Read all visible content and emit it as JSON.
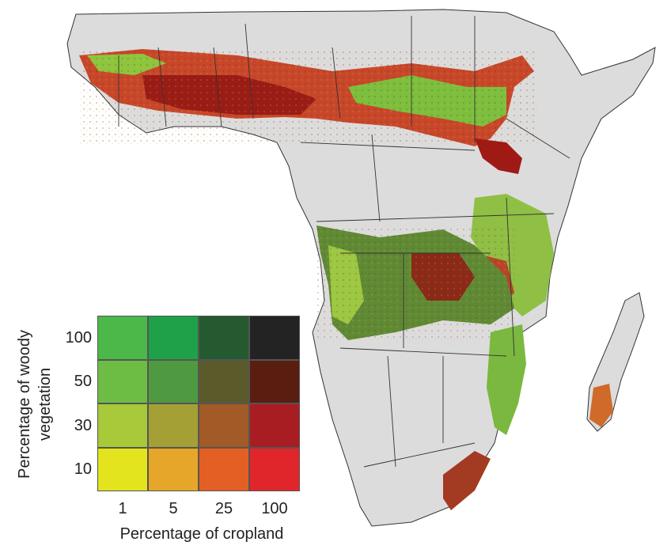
{
  "legend": {
    "y_title": "Percentage of woody vegetation",
    "x_title": "Percentage of cropland",
    "y_ticks": [
      "100",
      "50",
      "30",
      "10"
    ],
    "x_ticks": [
      "1",
      "5",
      "25",
      "100"
    ],
    "colors": [
      [
        "#4db84a",
        "#1fa14a",
        "#255a30",
        "#232323"
      ],
      [
        "#6dbd45",
        "#4f9a40",
        "#5a5a2a",
        "#5a1e10"
      ],
      [
        "#a8c93a",
        "#a4a036",
        "#a25a27",
        "#a81d22"
      ],
      [
        "#e3e41d",
        "#e5a62a",
        "#e45f23",
        "#e0262a"
      ]
    ]
  },
  "map": {
    "land_color": "#dcdcdd",
    "border_color": "#333333"
  }
}
